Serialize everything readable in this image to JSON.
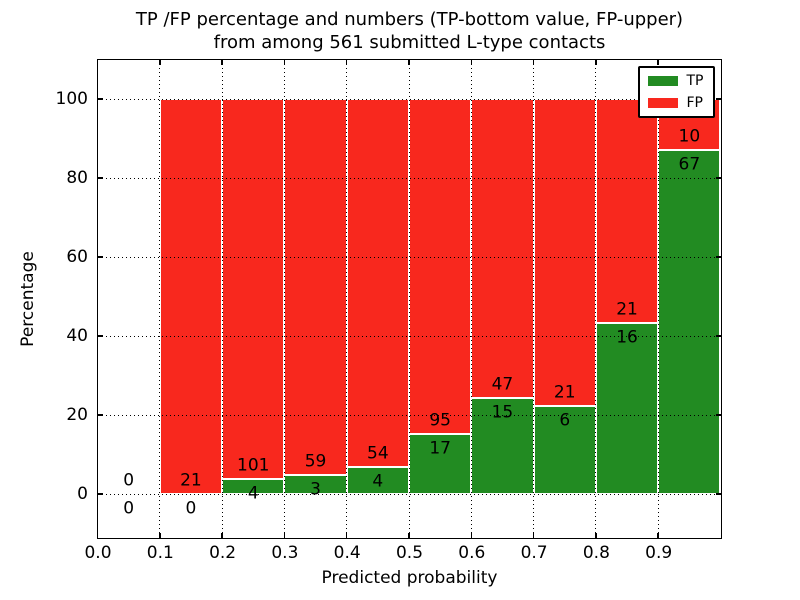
{
  "figure": {
    "background": "#ffffff"
  },
  "chart_data": {
    "type": "bar",
    "stacked": true,
    "orientation": "vertical",
    "title": "TP /FP percentage and numbers (TP-bottom value, FP-upper)",
    "subtitle": "from among 561 submitted L-type contacts",
    "xlabel": "Predicted probability",
    "ylabel": "Percentage",
    "total_submitted": 561,
    "xlim": [
      0.0,
      1.0
    ],
    "ylim": [
      -11,
      110
    ],
    "xticks": [
      "0.0",
      "0.1",
      "0.2",
      "0.3",
      "0.4",
      "0.5",
      "0.6",
      "0.7",
      "0.8",
      "0.9"
    ],
    "yticks": [
      "0",
      "20",
      "40",
      "60",
      "80",
      "100"
    ],
    "grid": {
      "style": "dotted",
      "color": "#000000",
      "above_bars": true
    },
    "bin_width": 0.1,
    "series": [
      {
        "name": "TP",
        "color": "#228b22"
      },
      {
        "name": "FP",
        "color": "#f8281e"
      }
    ],
    "bins": [
      {
        "x_start": 0.0,
        "x_end": 0.1,
        "tp_count": "0",
        "fp_count": "0",
        "tp_pct": 0,
        "fp_pct": 0
      },
      {
        "x_start": 0.1,
        "x_end": 0.2,
        "tp_count": "0",
        "fp_count": "21",
        "tp_pct": 0,
        "fp_pct": 100
      },
      {
        "x_start": 0.2,
        "x_end": 0.3,
        "tp_count": "4",
        "fp_count": "101",
        "tp_pct": 3.81,
        "fp_pct": 96.19
      },
      {
        "x_start": 0.3,
        "x_end": 0.4,
        "tp_count": "3",
        "fp_count": "59",
        "tp_pct": 4.84,
        "fp_pct": 95.16
      },
      {
        "x_start": 0.4,
        "x_end": 0.5,
        "tp_count": "4",
        "fp_count": "54",
        "tp_pct": 6.9,
        "fp_pct": 93.1
      },
      {
        "x_start": 0.5,
        "x_end": 0.6,
        "tp_count": "17",
        "fp_count": "95",
        "tp_pct": 15.18,
        "fp_pct": 84.82
      },
      {
        "x_start": 0.6,
        "x_end": 0.7,
        "tp_count": "15",
        "fp_count": "47",
        "tp_pct": 24.19,
        "fp_pct": 75.81
      },
      {
        "x_start": 0.7,
        "x_end": 0.8,
        "tp_count": "6",
        "fp_count": "21",
        "tp_pct": 22.22,
        "fp_pct": 77.78
      },
      {
        "x_start": 0.8,
        "x_end": 0.9,
        "tp_count": "16",
        "fp_count": "21",
        "tp_pct": 43.24,
        "fp_pct": 56.76
      },
      {
        "x_start": 0.9,
        "x_end": 1.0,
        "tp_count": "67",
        "fp_count": "10",
        "tp_pct": 87.01,
        "fp_pct": 12.99
      }
    ],
    "legend": {
      "position": "upper-right",
      "items": [
        {
          "label": "TP",
          "color": "#228b22"
        },
        {
          "label": "FP",
          "color": "#f8281e"
        }
      ]
    }
  }
}
